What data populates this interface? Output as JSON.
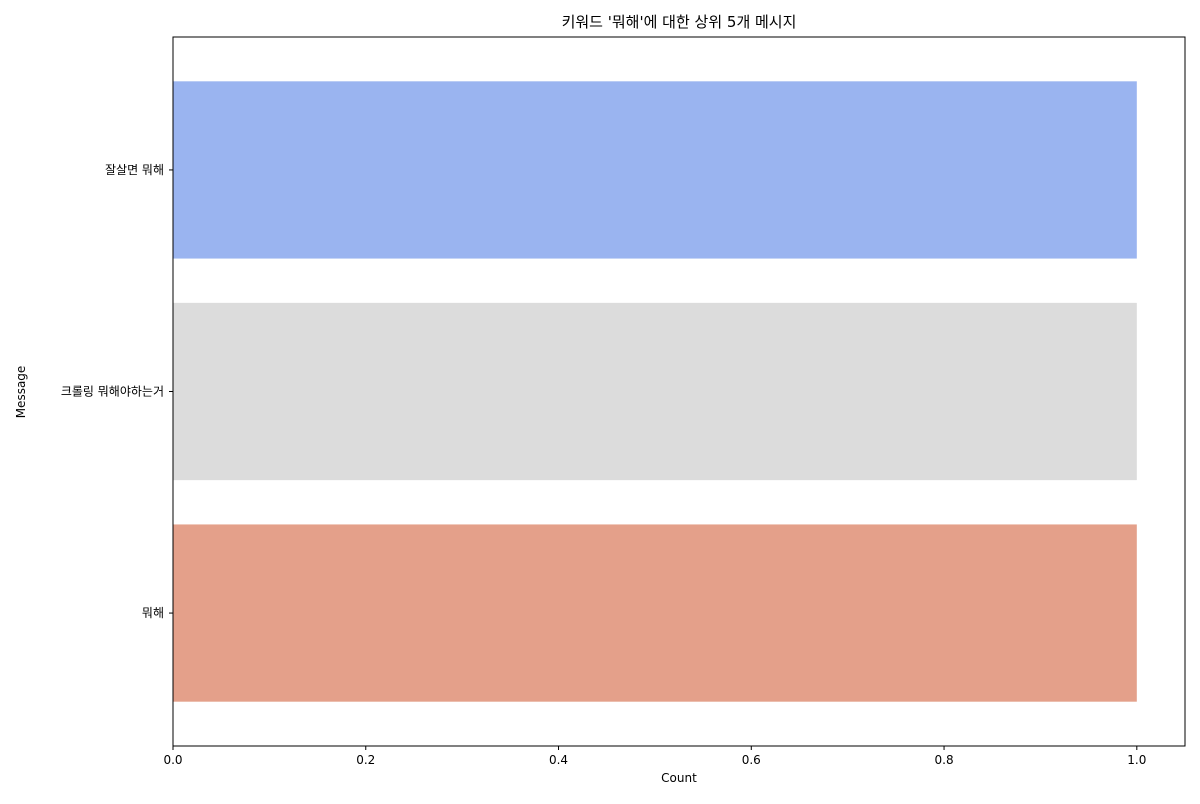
{
  "chart_data": {
    "type": "bar",
    "orientation": "horizontal",
    "title": "키워드 '뭐해'에 대한 상위 5개 메시지",
    "xlabel": "Count",
    "ylabel": "Message",
    "categories": [
      "잘살면 뭐해",
      "크롤링 뭐해야하는거",
      "뭐해"
    ],
    "values": [
      1,
      1,
      1
    ],
    "colors": [
      "#9ab4f0",
      "#dcdcdc",
      "#e4a08a"
    ],
    "xlim": [
      0,
      1.05
    ],
    "xticks": [
      "0.0",
      "0.2",
      "0.4",
      "0.6",
      "0.8",
      "1.0"
    ],
    "grid": false,
    "legend": "none"
  }
}
